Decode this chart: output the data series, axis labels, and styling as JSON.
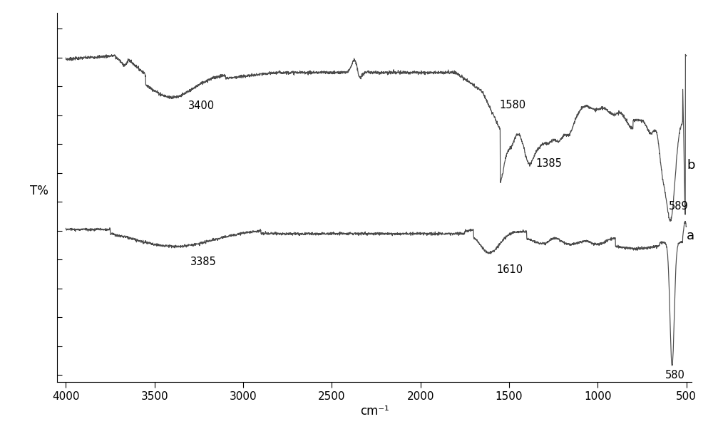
{
  "title": "",
  "xlabel": "cm⁻¹",
  "ylabel": "T%",
  "background_color": "#ffffff",
  "line_color": "#4a4a4a",
  "label_a": "a",
  "label_b": "b"
}
